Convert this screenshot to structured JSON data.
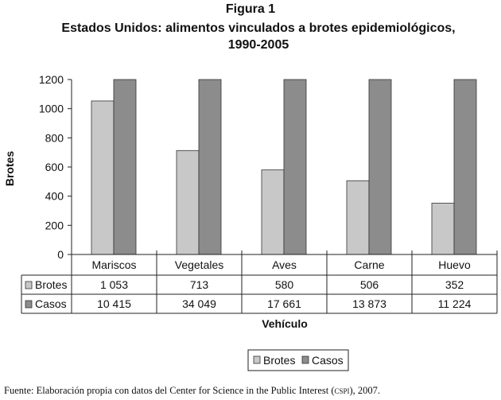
{
  "figure": {
    "label": "Figura 1",
    "title_line1": "Estados Unidos: alimentos vinculados a brotes epidemiológicos,",
    "title_line2": "1990-2005"
  },
  "chart_data": {
    "type": "bar",
    "categories": [
      "Mariscos",
      "Vegetales",
      "Aves",
      "Carne",
      "Huevo"
    ],
    "series": [
      {
        "name": "Brotes",
        "values": [
          1053,
          713,
          580,
          506,
          352
        ],
        "labels": [
          "1 053",
          "713",
          "580",
          "506",
          "352"
        ],
        "color": "#c8c8c8"
      },
      {
        "name": "Casos",
        "values": [
          10415,
          34049,
          17661,
          13873,
          11224
        ],
        "labels": [
          "10 415",
          "34 049",
          "17 661",
          "13 873",
          "11 224"
        ],
        "color": "#8c8c8c"
      }
    ],
    "ylabel": "Brotes",
    "xlabel": "Vehículo",
    "ylim": [
      0,
      1200
    ],
    "yticks": [
      "0",
      "200",
      "400",
      "600",
      "800",
      "1000",
      "1200"
    ],
    "grid": false,
    "legend": "bottom-right"
  },
  "source": {
    "prefix": "Fuente: Elaboración propia con datos del Center for Science in the Public Interest (",
    "abbr": "cspi",
    "suffix": "), 2007."
  }
}
